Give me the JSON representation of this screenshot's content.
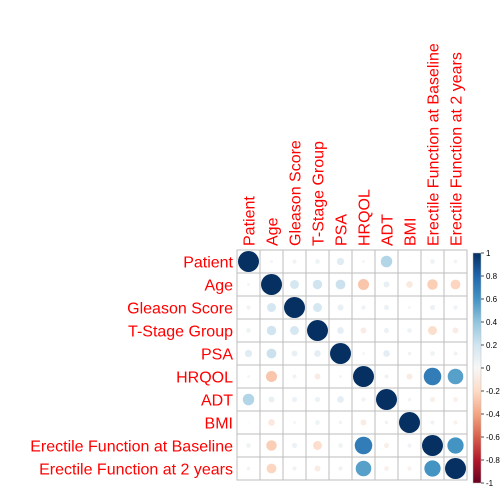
{
  "chart_data": {
    "type": "heatmap",
    "variables": [
      "Patient",
      "Age",
      "Gleason Score",
      "T-Stage Group",
      "PSA",
      "HRQOL",
      "ADT",
      "BMI",
      "Erectile Function at Baseline",
      "Erectile Function at 2 years"
    ],
    "matrix": [
      [
        1.0,
        0.02,
        0.04,
        0.05,
        0.12,
        0.02,
        0.3,
        0.0,
        0.05,
        0.03
      ],
      [
        0.02,
        1.0,
        0.18,
        0.2,
        0.22,
        -0.28,
        0.08,
        -0.1,
        -0.25,
        -0.22
      ],
      [
        0.04,
        0.18,
        1.0,
        0.18,
        0.08,
        0.04,
        0.06,
        0.02,
        0.06,
        0.04
      ],
      [
        0.05,
        0.2,
        0.18,
        1.0,
        0.1,
        -0.08,
        0.06,
        0.05,
        -0.18,
        -0.08
      ],
      [
        0.12,
        0.22,
        0.08,
        0.1,
        1.0,
        0.02,
        0.1,
        0.03,
        0.05,
        0.04
      ],
      [
        0.02,
        -0.28,
        0.04,
        -0.08,
        0.02,
        1.0,
        0.04,
        -0.08,
        0.7,
        0.55
      ],
      [
        0.3,
        0.08,
        0.06,
        0.06,
        0.1,
        0.04,
        1.0,
        0.03,
        -0.06,
        -0.05
      ],
      [
        0.0,
        -0.1,
        0.02,
        0.05,
        0.03,
        -0.08,
        0.03,
        1.0,
        0.04,
        -0.04
      ],
      [
        0.05,
        -0.25,
        0.06,
        -0.18,
        0.05,
        0.7,
        -0.06,
        0.04,
        1.0,
        0.6
      ],
      [
        0.03,
        -0.22,
        0.04,
        -0.08,
        0.04,
        0.55,
        -0.05,
        -0.04,
        0.6,
        1.0
      ]
    ],
    "colorbar": {
      "range": [
        -1,
        1
      ],
      "ticks": [
        "-1",
        "-0.8",
        "-0.6",
        "-0.4",
        "-0.2",
        "0",
        "0.2",
        "0.4",
        "0.6",
        "0.8",
        "1"
      ]
    },
    "colors": {
      "negative": "#67001f",
      "neutral": "#f7f7f7",
      "positive": "#053061",
      "labels": "#ff0000",
      "grid": "#bebebe"
    }
  }
}
